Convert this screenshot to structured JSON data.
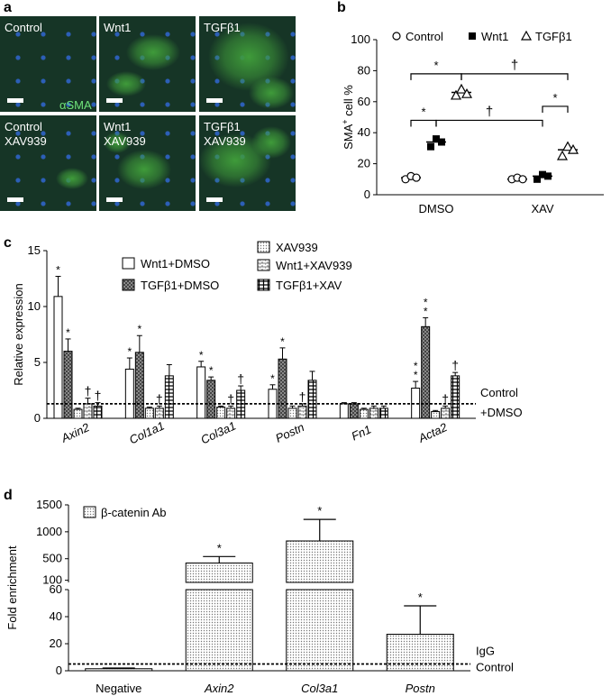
{
  "panel_labels": [
    "a",
    "b",
    "c",
    "d"
  ],
  "micrographs": {
    "stain": "αSMA",
    "tiles": [
      "Control",
      "Wnt1",
      "TGFβ1",
      "Control\nXAV939",
      "Wnt1\nXAV939",
      "TGFβ1\nXAV939"
    ],
    "colors": {
      "background": "#163526",
      "cells": "#3f9b3a",
      "nuclei": "#2c5fb8"
    }
  },
  "chart_data": [
    {
      "type": "scatter",
      "panel": "b",
      "ylabel_main": "SMA",
      "ylabel_sup": "+",
      "ylabel_rest": " cell %",
      "ylim": [
        0,
        100
      ],
      "yticks": [
        "0",
        "20",
        "40",
        "60",
        "80",
        "100"
      ],
      "categories": [
        "DMSO",
        "XAV"
      ],
      "series": [
        {
          "name": "Control",
          "marker": "circle",
          "values": [
            [
              10,
              12,
              11
            ],
            [
              10,
              11,
              10
            ]
          ],
          "means": [
            11,
            10
          ]
        },
        {
          "name": "Wnt1",
          "marker": "square",
          "values": [
            [
              31,
              36,
              34
            ],
            [
              10,
              13,
              12
            ]
          ],
          "means": [
            34,
            12
          ]
        },
        {
          "name": "TGFβ1",
          "marker": "triangle",
          "values": [
            [
              64,
              68,
              65
            ],
            [
              25,
              31,
              29
            ]
          ],
          "means": [
            66,
            29
          ]
        }
      ],
      "significance": [
        {
          "symbol": "*",
          "from": [
            0,
            0
          ],
          "to": [
            0,
            2
          ],
          "y": 78
        },
        {
          "symbol": "†",
          "from": [
            0,
            2
          ],
          "to": [
            1,
            2
          ],
          "y": 78
        },
        {
          "symbol": "*",
          "from": [
            0,
            0
          ],
          "to": [
            0,
            1
          ],
          "y": 48
        },
        {
          "symbol": "†",
          "from": [
            0,
            1
          ],
          "to": [
            1,
            1
          ],
          "y": 48
        },
        {
          "symbol": "*",
          "from": [
            1,
            1
          ],
          "to": [
            1,
            2
          ],
          "y": 57
        }
      ]
    },
    {
      "type": "bar",
      "panel": "c",
      "ylabel": "Relative expression",
      "ylim": [
        0,
        15
      ],
      "yticks": [
        "0",
        "5",
        "10",
        "15"
      ],
      "categories": [
        "Axin2",
        "Col1a1",
        "Col3a1",
        "Postn",
        "Fn1",
        "Acta2"
      ],
      "series": [
        {
          "name": "Wnt1+DMSO",
          "pattern": "white",
          "values": [
            10.9,
            4.4,
            4.6,
            2.6,
            1.3,
            2.7
          ],
          "errors": [
            1.8,
            1.0,
            0.5,
            0.4,
            0.1,
            0.6
          ]
        },
        {
          "name": "TGFβ1+DMSO",
          "pattern": "cross",
          "values": [
            6.0,
            5.9,
            3.4,
            5.3,
            1.3,
            8.2
          ],
          "errors": [
            1.1,
            1.5,
            0.3,
            1.0,
            0.1,
            0.8
          ]
        },
        {
          "name": "XAV939",
          "pattern": "dots",
          "values": [
            0.8,
            0.9,
            1.0,
            0.9,
            0.8,
            0.6
          ],
          "errors": [
            0.1,
            0.1,
            0.1,
            0.2,
            0.1,
            0.1
          ]
        },
        {
          "name": "Wnt1+XAV939",
          "pattern": "brick",
          "values": [
            1.3,
            0.9,
            0.9,
            1.1,
            0.9,
            0.9
          ],
          "errors": [
            0.5,
            0.2,
            0.2,
            0.2,
            0.2,
            0.2
          ]
        },
        {
          "name": "TGFβ1+XAV",
          "pattern": "hatch",
          "values": [
            1.1,
            3.8,
            2.5,
            3.4,
            0.9,
            3.8
          ],
          "errors": [
            0.3,
            1.0,
            0.4,
            0.8,
            0.2,
            0.3
          ]
        }
      ],
      "annotations": [
        {
          "category": 0,
          "series": 0,
          "text": "*"
        },
        {
          "category": 0,
          "series": 1,
          "text": "*"
        },
        {
          "category": 0,
          "series": 3,
          "text": "†"
        },
        {
          "category": 0,
          "series": 4,
          "text": "†"
        },
        {
          "category": 1,
          "series": 0,
          "text": "*"
        },
        {
          "category": 1,
          "series": 1,
          "text": "*"
        },
        {
          "category": 1,
          "series": 3,
          "text": "†"
        },
        {
          "category": 2,
          "series": 0,
          "text": "*"
        },
        {
          "category": 2,
          "series": 1,
          "text": "*"
        },
        {
          "category": 2,
          "series": 3,
          "text": "†"
        },
        {
          "category": 2,
          "series": 4,
          "text": "†"
        },
        {
          "category": 3,
          "series": 0,
          "text": "*"
        },
        {
          "category": 3,
          "series": 1,
          "text": "*"
        },
        {
          "category": 3,
          "series": 3,
          "text": "†"
        },
        {
          "category": 5,
          "series": 0,
          "text": "*"
        },
        {
          "category": 5,
          "series": 0,
          "text": "*"
        },
        {
          "category": 5,
          "series": 1,
          "text": "*"
        },
        {
          "category": 5,
          "series": 1,
          "text": "*"
        },
        {
          "category": 5,
          "series": 3,
          "text": "†"
        },
        {
          "category": 5,
          "series": 4,
          "text": "†"
        }
      ],
      "reference_line": {
        "value": 1.3,
        "label_line1": "Control",
        "label_line2": "+DMSO"
      }
    },
    {
      "type": "bar",
      "panel": "d",
      "ylabel": "Fold enrichment",
      "broken_axis": true,
      "lower_ylim": [
        0,
        60
      ],
      "lower_yticks": [
        "0",
        "20",
        "40",
        "60"
      ],
      "upper_ylim": [
        60,
        1500
      ],
      "upper_yticks": [
        "100",
        "500",
        "1000",
        "1500"
      ],
      "categories": [
        "Negative",
        "Axin2",
        "Col3a1",
        "Postn"
      ],
      "series": [
        {
          "name": "β-catenin Ab",
          "pattern": "dots",
          "values": [
            1.5,
            420,
            830,
            27
          ],
          "errors": [
            0.5,
            120,
            400,
            21
          ]
        }
      ],
      "annotations": [
        "",
        "*",
        "*",
        "*"
      ],
      "reference_line": {
        "value": 5,
        "label_line1": "IgG",
        "label_line2": "Control"
      }
    }
  ]
}
